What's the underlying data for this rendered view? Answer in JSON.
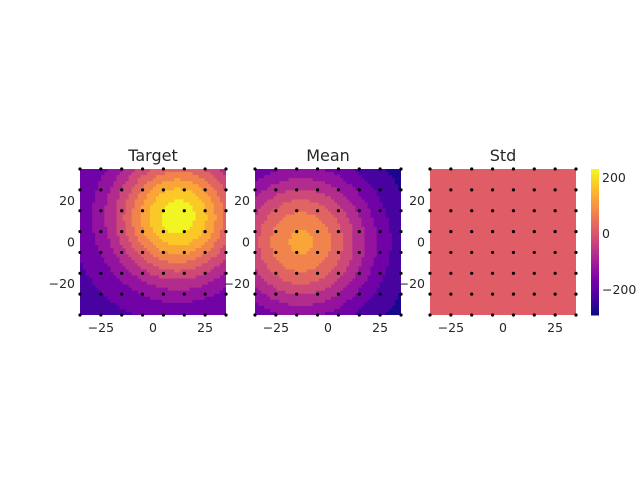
{
  "chart_data": [
    {
      "type": "heatmap",
      "title": "Target",
      "xlabel": "",
      "ylabel": "",
      "xlim": [
        -35,
        35
      ],
      "ylim": [
        -35,
        35
      ],
      "xticks": [
        -25,
        0,
        25
      ],
      "yticks": [
        -20,
        0,
        20
      ],
      "xtick_labels": [
        "−25",
        "0",
        "25"
      ],
      "ytick_labels": [
        "−20",
        "0",
        "20"
      ],
      "grid": false,
      "field": {
        "kind": "gaussian",
        "center": [
          12,
          12
        ],
        "sigma": 22,
        "peak": 230,
        "floor": -230
      },
      "levels": [
        -250,
        -200,
        -150,
        -100,
        -50,
        0,
        50,
        100,
        150,
        200,
        250
      ],
      "points": {
        "x": [
          -35,
          -25,
          -15,
          -5,
          5,
          15,
          25,
          35
        ],
        "y": [
          -35,
          -25,
          -15,
          -5,
          5,
          15,
          25,
          35
        ]
      }
    },
    {
      "type": "heatmap",
      "title": "Mean",
      "xlabel": "",
      "ylabel": "",
      "xlim": [
        -35,
        35
      ],
      "ylim": [
        -35,
        35
      ],
      "xticks": [
        -25,
        0,
        25
      ],
      "yticks": [
        -20,
        0,
        20
      ],
      "xtick_labels": [
        "−25",
        "0",
        "25"
      ],
      "ytick_labels": [
        "−20",
        "0",
        "20"
      ],
      "grid": false,
      "field": {
        "kind": "gaussian",
        "center": [
          -13,
          0
        ],
        "sigma": 25,
        "peak": 110,
        "floor": -290
      },
      "levels": [
        -300,
        -250,
        -200,
        -150,
        -100,
        -50,
        0,
        50,
        100,
        150
      ],
      "points": {
        "x": [
          -35,
          -25,
          -15,
          -5,
          5,
          15,
          25,
          35
        ],
        "y": [
          -35,
          -25,
          -15,
          -5,
          5,
          15,
          25,
          35
        ]
      }
    },
    {
      "type": "heatmap",
      "title": "Std",
      "xlabel": "",
      "ylabel": "",
      "xlim": [
        -35,
        35
      ],
      "ylim": [
        -35,
        35
      ],
      "xticks": [
        -25,
        0,
        25
      ],
      "yticks": [
        -20,
        0,
        20
      ],
      "xtick_labels": [
        "−25",
        "0",
        "25"
      ],
      "ytick_labels": [
        "−20",
        "0",
        "20"
      ],
      "grid": false,
      "field": {
        "kind": "constant",
        "value": 0
      },
      "fill_color": "#e05c66",
      "points": {
        "x": [
          -35,
          -25,
          -15,
          -5,
          5,
          15,
          25,
          35
        ],
        "y": [
          -35,
          -25,
          -15,
          -5,
          5,
          15,
          25,
          35
        ]
      }
    }
  ],
  "colorbar": {
    "colormap": "plasma",
    "range": [
      -290,
      230
    ],
    "ticks": [
      200,
      0,
      -200
    ],
    "tick_labels": [
      "200",
      "0",
      "−200"
    ]
  },
  "colors": {
    "point": "#000000",
    "text": "#262626",
    "background": "#ffffff"
  }
}
